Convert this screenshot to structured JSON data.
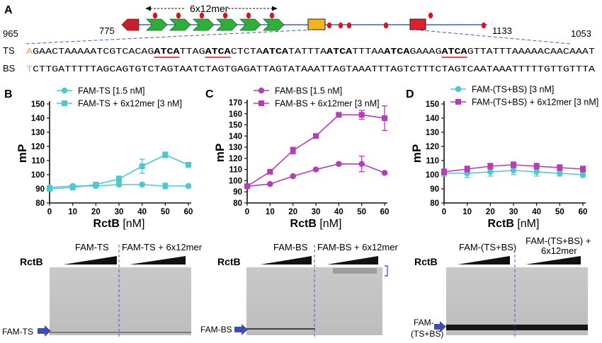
{
  "figure": {
    "panel_letters": [
      "A",
      "B",
      "C",
      "D"
    ],
    "colors": {
      "ts": "#4dc8cf",
      "bs": "#b83cb8",
      "box_orange": "#f5b41d",
      "box_red": "#e0202a",
      "arrow_green": "#2fae3a",
      "arrow_red": "#c8202a",
      "dot_red": "#d9141c",
      "gel_arrow": "#3a4fae",
      "line_blue": "#3a5fcf",
      "underline": "#d9141c"
    }
  },
  "panel_a": {
    "repeat_label": "6x12mer",
    "map_start": "775",
    "map_end": "1133",
    "seq_start": "965",
    "seq_end": "1053",
    "ts_label": "TS",
    "bs_label": "BS",
    "ts_first": "A",
    "bs_first": "T",
    "ts_segments": [
      {
        "t": "GAACTAAAAATCGTCACAG",
        "b": false,
        "u": false
      },
      {
        "t": "ATCA",
        "b": true,
        "u": true
      },
      {
        "t": "TTAG",
        "b": false,
        "u": false
      },
      {
        "t": "ATCA",
        "b": true,
        "u": true
      },
      {
        "t": "CTCTA",
        "b": false,
        "u": false
      },
      {
        "t": "ATCA",
        "b": true,
        "u": false
      },
      {
        "t": "TATTTA",
        "b": false,
        "u": false
      },
      {
        "t": "ATCA",
        "b": true,
        "u": false
      },
      {
        "t": "TTTAA",
        "b": false,
        "u": false
      },
      {
        "t": "ATCA",
        "b": true,
        "u": false
      },
      {
        "t": "GAAAG",
        "b": false,
        "u": false
      },
      {
        "t": "ATCA",
        "b": true,
        "u": true
      },
      {
        "t": "GTTATTTAAAAACAACAAAT",
        "b": false,
        "u": false
      }
    ],
    "bs_sequence": "CTTGATTTTTAGCAGTGTCTAGTAATCTAGTGAGATTAGTATAAATTAGTAAATTTAGTCTTTCTAGTCAATAAATTTTTGTTGTTTA"
  },
  "chart_data": [
    {
      "panel": "B",
      "type": "line",
      "ylabel": "mP",
      "xlabel_bold": "RctB",
      "xlabel_unit": "[nM]",
      "x": [
        0,
        10,
        20,
        30,
        40,
        50,
        60
      ],
      "xlim": [
        0,
        60
      ],
      "ylim": [
        80,
        150
      ],
      "yticks": [
        80,
        90,
        100,
        110,
        120,
        130,
        140,
        150
      ],
      "series": [
        {
          "name": "FAM-TS [1.5 nM]",
          "marker": "circle",
          "color": "#4dc8cf",
          "values": [
            91,
            92,
            92,
            93,
            93,
            92,
            92
          ],
          "err": [
            1,
            1,
            1,
            1,
            1,
            2,
            1
          ]
        },
        {
          "name": "FAM-TS + 6x12mer [3 nM]",
          "marker": "square",
          "color": "#4dc8cf",
          "values": [
            90,
            91,
            93,
            97,
            106,
            114,
            107
          ],
          "err": [
            1,
            1,
            1,
            2,
            5,
            2,
            1
          ]
        }
      ]
    },
    {
      "panel": "C",
      "type": "line",
      "ylabel": "mP",
      "xlabel_bold": "RctB",
      "xlabel_unit": "[nM]",
      "x": [
        0,
        10,
        20,
        30,
        40,
        50,
        60
      ],
      "xlim": [
        0,
        60
      ],
      "ylim": [
        80,
        170
      ],
      "yticks": [
        80,
        90,
        100,
        110,
        120,
        130,
        140,
        150,
        160,
        170
      ],
      "series": [
        {
          "name": "FAM-BS [1.5 nM]",
          "marker": "circle",
          "color": "#b83cb8",
          "values": [
            95,
            97,
            104,
            110,
            115,
            115,
            107
          ],
          "err": [
            1,
            1,
            1,
            1,
            1,
            7,
            1
          ]
        },
        {
          "name": "FAM-BS + 6x12mer [3 nM]",
          "marker": "square",
          "color": "#b83cb8",
          "values": [
            95,
            108,
            127,
            140,
            159,
            159,
            156
          ],
          "err": [
            1,
            1,
            3,
            2,
            1,
            4,
            11
          ]
        }
      ]
    },
    {
      "panel": "D",
      "type": "line",
      "ylabel": "mP",
      "xlabel_bold": "RctB",
      "xlabel_unit": "[nM]",
      "x": [
        0,
        10,
        20,
        30,
        40,
        50,
        60
      ],
      "xlim": [
        0,
        60
      ],
      "ylim": [
        80,
        150
      ],
      "yticks": [
        80,
        90,
        100,
        110,
        120,
        130,
        140,
        150
      ],
      "series": [
        {
          "name": "FAM-(TS+BS) [3 nM]",
          "marker": "circle",
          "color": "#4dc8cf",
          "values": [
            101,
            101,
            102,
            103,
            102,
            101,
            100
          ],
          "err": [
            2,
            3,
            3,
            3,
            3,
            2,
            2
          ]
        },
        {
          "name": "FAM-(TS+BS) + 6x12mer [3 nM]",
          "marker": "square",
          "color": "#b83cb8",
          "values": [
            102,
            104,
            106,
            107,
            106,
            105,
            104
          ],
          "err": [
            2,
            2,
            2,
            2,
            2,
            2,
            2
          ]
        }
      ]
    }
  ],
  "gels": [
    {
      "panel": "B",
      "rctb_label": "RctB",
      "left_label": "FAM-TS",
      "right_label": "FAM-TS + 6x12mer",
      "band_label": "FAM-TS"
    },
    {
      "panel": "C",
      "rctb_label": "RctB",
      "left_label": "FAM-BS",
      "right_label": "FAM-BS + 6x12mer",
      "band_label": "FAM-BS"
    },
    {
      "panel": "D",
      "rctb_label": "RctB",
      "left_label": "FAM-(TS+BS)",
      "right_label_1": "FAM-(TS+BS) +",
      "right_label_2": "6x12mer",
      "band_label_1": "FAM-",
      "band_label_2": "(TS+BS)"
    }
  ]
}
